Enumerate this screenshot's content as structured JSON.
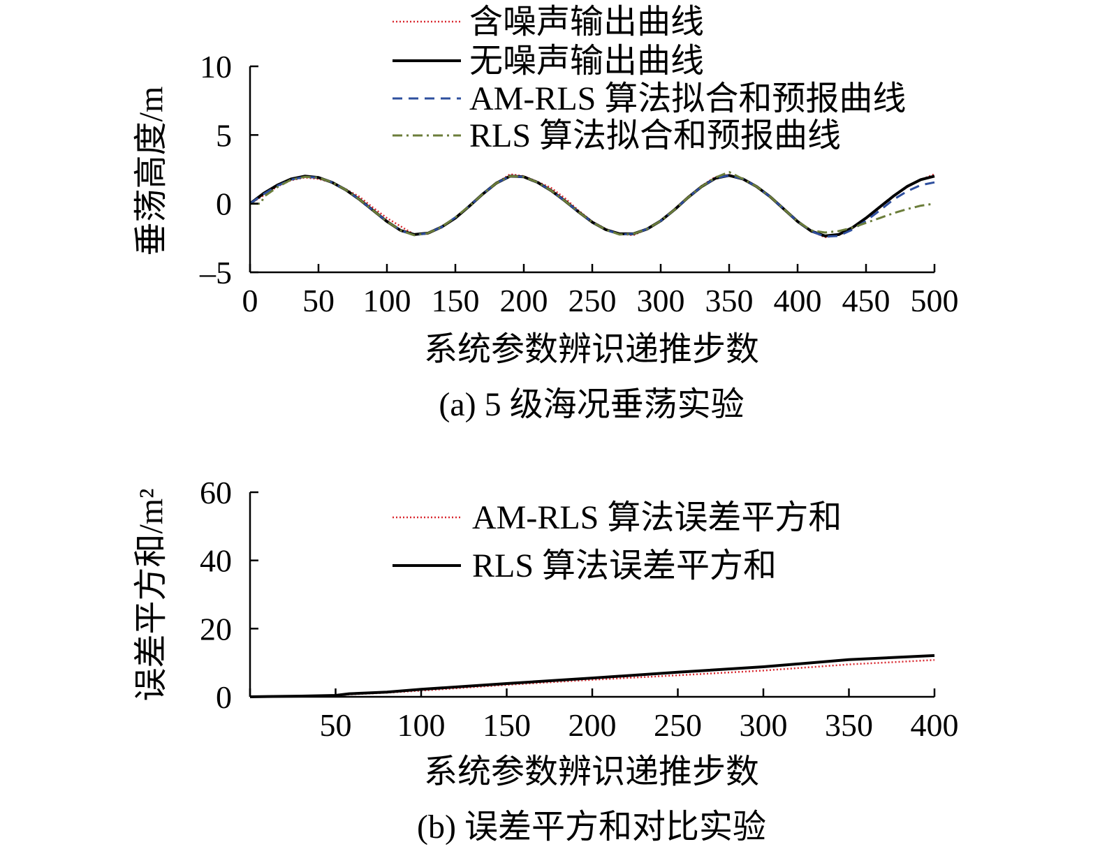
{
  "chart_data": [
    {
      "type": "line",
      "caption": "(a) 5 级海况垂荡实验",
      "xlabel": "系统参数辨识递推步数",
      "ylabel": "垂荡高度/m",
      "xlim": [
        0,
        500
      ],
      "ylim": [
        -5,
        10
      ],
      "xticks": [
        "0",
        "50",
        "100",
        "150",
        "200",
        "250",
        "300",
        "350",
        "400",
        "450",
        "500"
      ],
      "yticks": [
        "–5",
        "0",
        "5",
        "10"
      ],
      "grid": false,
      "legend_position": "top",
      "series": [
        {
          "name": "含噪声输出曲线",
          "color": "#d9282f",
          "style": "dotted",
          "points": [
            [
              0,
              0.0
            ],
            [
              10,
              0.6
            ],
            [
              20,
              1.25
            ],
            [
              30,
              1.7
            ],
            [
              40,
              1.9
            ],
            [
              50,
              1.8
            ],
            [
              60,
              1.55
            ],
            [
              70,
              1.05
            ],
            [
              80,
              0.5
            ],
            [
              90,
              -0.3
            ],
            [
              100,
              -1.05
            ],
            [
              110,
              -1.65
            ],
            [
              120,
              -2.25
            ],
            [
              130,
              -2.2
            ],
            [
              140,
              -1.7
            ],
            [
              150,
              -1.05
            ],
            [
              160,
              -0.25
            ],
            [
              170,
              0.7
            ],
            [
              180,
              1.5
            ],
            [
              190,
              2.15
            ],
            [
              200,
              2.0
            ],
            [
              210,
              1.6
            ],
            [
              220,
              1.15
            ],
            [
              230,
              0.4
            ],
            [
              240,
              -0.5
            ],
            [
              250,
              -1.3
            ],
            [
              260,
              -1.85
            ],
            [
              270,
              -2.2
            ],
            [
              280,
              -2.3
            ],
            [
              290,
              -1.85
            ],
            [
              300,
              -1.25
            ],
            [
              310,
              -0.4
            ],
            [
              320,
              0.5
            ],
            [
              330,
              1.3
            ],
            [
              340,
              1.95
            ],
            [
              350,
              2.1
            ],
            [
              360,
              1.75
            ],
            [
              370,
              1.25
            ],
            [
              380,
              0.5
            ],
            [
              390,
              -0.4
            ],
            [
              400,
              -1.3
            ],
            [
              410,
              -2.0
            ],
            [
              420,
              -2.45
            ],
            [
              430,
              -2.3
            ],
            [
              440,
              -1.8
            ],
            [
              450,
              -1.1
            ],
            [
              460,
              -0.3
            ],
            [
              470,
              0.5
            ],
            [
              480,
              1.2
            ],
            [
              490,
              1.75
            ],
            [
              500,
              2.15
            ]
          ]
        },
        {
          "name": "无噪声输出曲线",
          "color": "#000000",
          "style": "solid",
          "points": [
            [
              0,
              0.0
            ],
            [
              10,
              0.75
            ],
            [
              20,
              1.35
            ],
            [
              30,
              1.8
            ],
            [
              40,
              2.0
            ],
            [
              50,
              1.9
            ],
            [
              60,
              1.55
            ],
            [
              70,
              1.0
            ],
            [
              80,
              0.3
            ],
            [
              90,
              -0.5
            ],
            [
              100,
              -1.3
            ],
            [
              110,
              -1.95
            ],
            [
              120,
              -2.25
            ],
            [
              130,
              -2.15
            ],
            [
              140,
              -1.7
            ],
            [
              150,
              -1.05
            ],
            [
              160,
              -0.2
            ],
            [
              170,
              0.7
            ],
            [
              180,
              1.5
            ],
            [
              190,
              2.0
            ],
            [
              200,
              1.95
            ],
            [
              210,
              1.55
            ],
            [
              220,
              0.95
            ],
            [
              230,
              0.2
            ],
            [
              240,
              -0.6
            ],
            [
              250,
              -1.35
            ],
            [
              260,
              -1.9
            ],
            [
              270,
              -2.2
            ],
            [
              280,
              -2.2
            ],
            [
              290,
              -1.85
            ],
            [
              300,
              -1.25
            ],
            [
              310,
              -0.45
            ],
            [
              320,
              0.45
            ],
            [
              330,
              1.25
            ],
            [
              340,
              1.85
            ],
            [
              350,
              2.05
            ],
            [
              360,
              1.8
            ],
            [
              370,
              1.25
            ],
            [
              380,
              0.5
            ],
            [
              390,
              -0.4
            ],
            [
              400,
              -1.3
            ],
            [
              410,
              -2.0
            ],
            [
              420,
              -2.35
            ],
            [
              430,
              -2.25
            ],
            [
              440,
              -1.75
            ],
            [
              450,
              -1.05
            ],
            [
              460,
              -0.25
            ],
            [
              470,
              0.55
            ],
            [
              480,
              1.25
            ],
            [
              490,
              1.75
            ],
            [
              500,
              2.0
            ]
          ]
        },
        {
          "name": "AM-RLS 算法拟合和预报曲线",
          "color": "#2e4f9e",
          "style": "dashed",
          "points": [
            [
              0,
              0.0
            ],
            [
              10,
              0.7
            ],
            [
              20,
              1.3
            ],
            [
              30,
              1.75
            ],
            [
              40,
              1.95
            ],
            [
              50,
              1.9
            ],
            [
              60,
              1.55
            ],
            [
              70,
              1.0
            ],
            [
              80,
              0.3
            ],
            [
              90,
              -0.5
            ],
            [
              100,
              -1.3
            ],
            [
              110,
              -1.95
            ],
            [
              120,
              -2.3
            ],
            [
              130,
              -2.15
            ],
            [
              140,
              -1.7
            ],
            [
              150,
              -1.0
            ],
            [
              160,
              -0.2
            ],
            [
              170,
              0.7
            ],
            [
              180,
              1.5
            ],
            [
              190,
              2.0
            ],
            [
              200,
              1.95
            ],
            [
              210,
              1.55
            ],
            [
              220,
              0.95
            ],
            [
              230,
              0.2
            ],
            [
              240,
              -0.6
            ],
            [
              250,
              -1.35
            ],
            [
              260,
              -1.9
            ],
            [
              270,
              -2.25
            ],
            [
              280,
              -2.2
            ],
            [
              290,
              -1.85
            ],
            [
              300,
              -1.25
            ],
            [
              310,
              -0.45
            ],
            [
              320,
              0.45
            ],
            [
              330,
              1.25
            ],
            [
              340,
              1.85
            ],
            [
              350,
              2.05
            ],
            [
              360,
              1.8
            ],
            [
              370,
              1.25
            ],
            [
              380,
              0.5
            ],
            [
              390,
              -0.4
            ],
            [
              400,
              -1.3
            ],
            [
              410,
              -2.0
            ],
            [
              420,
              -2.4
            ],
            [
              430,
              -2.35
            ],
            [
              440,
              -1.9
            ],
            [
              450,
              -1.25
            ],
            [
              460,
              -0.5
            ],
            [
              470,
              0.3
            ],
            [
              480,
              0.9
            ],
            [
              490,
              1.35
            ],
            [
              500,
              1.55
            ]
          ]
        },
        {
          "name": "RLS 算法拟合和预报曲线",
          "color": "#6b7d3a",
          "style": "dashdot",
          "points": [
            [
              0,
              0.0
            ],
            [
              8,
              0.0
            ],
            [
              10,
              0.5
            ],
            [
              20,
              1.2
            ],
            [
              30,
              1.75
            ],
            [
              40,
              1.95
            ],
            [
              50,
              1.9
            ],
            [
              60,
              1.55
            ],
            [
              70,
              1.0
            ],
            [
              80,
              0.3
            ],
            [
              90,
              -0.5
            ],
            [
              100,
              -1.3
            ],
            [
              110,
              -1.95
            ],
            [
              120,
              -2.3
            ],
            [
              130,
              -2.15
            ],
            [
              140,
              -1.7
            ],
            [
              150,
              -1.0
            ],
            [
              160,
              -0.2
            ],
            [
              170,
              0.7
            ],
            [
              180,
              1.5
            ],
            [
              190,
              2.0
            ],
            [
              200,
              1.95
            ],
            [
              210,
              1.55
            ],
            [
              220,
              0.95
            ],
            [
              230,
              0.2
            ],
            [
              240,
              -0.6
            ],
            [
              250,
              -1.35
            ],
            [
              260,
              -1.9
            ],
            [
              270,
              -2.25
            ],
            [
              280,
              -2.2
            ],
            [
              290,
              -1.85
            ],
            [
              300,
              -1.25
            ],
            [
              310,
              -0.45
            ],
            [
              320,
              0.45
            ],
            [
              330,
              1.25
            ],
            [
              340,
              1.9
            ],
            [
              350,
              2.3
            ],
            [
              360,
              1.8
            ],
            [
              370,
              1.25
            ],
            [
              380,
              0.5
            ],
            [
              390,
              -0.4
            ],
            [
              400,
              -1.3
            ],
            [
              410,
              -1.95
            ],
            [
              420,
              -2.1
            ],
            [
              430,
              -2.0
            ],
            [
              440,
              -1.75
            ],
            [
              450,
              -1.4
            ],
            [
              460,
              -1.05
            ],
            [
              470,
              -0.7
            ],
            [
              480,
              -0.4
            ],
            [
              490,
              -0.15
            ],
            [
              500,
              0.0
            ]
          ]
        }
      ]
    },
    {
      "type": "line",
      "caption": "(b) 误差平方和对比实验",
      "xlabel": "系统参数辨识递推步数",
      "ylabel": "误差平方和/m²",
      "xlim": [
        0,
        400
      ],
      "ylim": [
        0,
        60
      ],
      "xticks": [
        "",
        "50",
        "100",
        "150",
        "200",
        "250",
        "300",
        "350",
        "400"
      ],
      "yticks": [
        "0",
        "20",
        "40",
        "60"
      ],
      "grid": false,
      "legend_position": "top",
      "series": [
        {
          "name": "AM-RLS 算法误差平方和",
          "color": "#d9282f",
          "style": "dotted",
          "points": [
            [
              0,
              0.0
            ],
            [
              30,
              0.1
            ],
            [
              50,
              0.3
            ],
            [
              58,
              0.7
            ],
            [
              80,
              1.2
            ],
            [
              100,
              1.8
            ],
            [
              150,
              3.5
            ],
            [
              200,
              5.0
            ],
            [
              250,
              6.3
            ],
            [
              300,
              7.7
            ],
            [
              350,
              9.5
            ],
            [
              400,
              10.8
            ]
          ]
        },
        {
          "name": "RLS 算法误差平方和",
          "color": "#000000",
          "style": "solid",
          "points": [
            [
              0,
              0.0
            ],
            [
              30,
              0.2
            ],
            [
              50,
              0.4
            ],
            [
              58,
              0.9
            ],
            [
              80,
              1.4
            ],
            [
              100,
              2.2
            ],
            [
              150,
              3.9
            ],
            [
              200,
              5.5
            ],
            [
              250,
              7.2
            ],
            [
              300,
              8.8
            ],
            [
              350,
              10.9
            ],
            [
              400,
              12.1
            ]
          ]
        }
      ]
    }
  ]
}
